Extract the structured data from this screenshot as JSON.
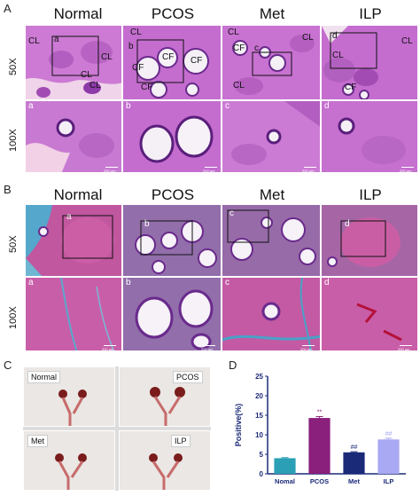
{
  "panels": {
    "A": {
      "letter": "A"
    },
    "B": {
      "letter": "B"
    },
    "C": {
      "letter": "C"
    },
    "D": {
      "letter": "D"
    }
  },
  "columns": [
    "Normal",
    "PCOS",
    "Met",
    "ILP"
  ],
  "rows": [
    "50X",
    "100X"
  ],
  "subletters": [
    "a",
    "b",
    "c",
    "d"
  ],
  "panelA_labels": {
    "normal": [
      "CL",
      "CL",
      "CL",
      "CL"
    ],
    "pcos": [
      "CL",
      "CF",
      "CF",
      "CF",
      "CF"
    ],
    "met": [
      "CL",
      "CF",
      "CL",
      "CL"
    ],
    "ilp": [
      "CL",
      "CL",
      "CF"
    ]
  },
  "scale_text": "200 μm",
  "photo_labels": [
    "Normal",
    "PCOS",
    "Met",
    "ILP"
  ],
  "colors": {
    "he_bg": "#c66fcf",
    "he_dark": "#6a2a8c",
    "masson_bg": "#b9549b",
    "masson_blue": "#4aa1c8",
    "bar_normal": "#2a9fb5",
    "bar_pcos": "#8a1f7c",
    "bar_met": "#1a2a78",
    "bar_ilp": "#a9a8f2"
  },
  "chart_data": {
    "type": "bar",
    "categories": [
      "Nomal",
      "PCOS",
      "Met",
      "ILP"
    ],
    "values": [
      4.0,
      14.3,
      5.5,
      8.8
    ],
    "errors": [
      0.15,
      0.35,
      0.15,
      0.3
    ],
    "annotations": [
      "",
      "**",
      "##",
      "##"
    ],
    "ylabel": "Positive(%)",
    "ylim": [
      0,
      25
    ],
    "yticks": [
      0,
      5,
      10,
      15,
      20,
      25
    ],
    "colors": [
      "#2a9fb5",
      "#8a1f7c",
      "#1a2a78",
      "#a9a8f2"
    ]
  }
}
